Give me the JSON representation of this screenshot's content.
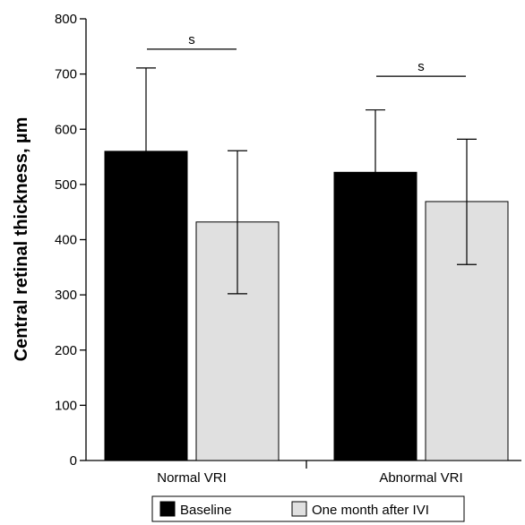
{
  "chart_data": {
    "type": "bar",
    "title": "",
    "xlabel": "",
    "ylabel": "Central retinal thickness, µm",
    "ylim": [
      0,
      800
    ],
    "yticks": [
      0,
      100,
      200,
      300,
      400,
      500,
      600,
      700,
      800
    ],
    "categories": [
      "Normal VRI",
      "Abnormal VRI"
    ],
    "series": [
      {
        "name": "Baseline",
        "color": "#000000",
        "values": [
          560,
          522
        ],
        "error_upper": [
          711,
          635
        ],
        "error_lower": [
          560,
          522
        ]
      },
      {
        "name": "One month after IVI",
        "color": "#e0e0e0",
        "values": [
          432,
          469
        ],
        "error_upper": [
          561,
          582
        ],
        "error_lower": [
          302,
          355
        ]
      }
    ],
    "significance": [
      {
        "category": "Normal VRI",
        "label": "s",
        "y": 745
      },
      {
        "category": "Abnormal VRI",
        "label": "s",
        "y": 696
      }
    ],
    "legend": {
      "position": "bottom-center",
      "entries": [
        "Baseline",
        "One month after IVI"
      ]
    },
    "grid": false
  }
}
